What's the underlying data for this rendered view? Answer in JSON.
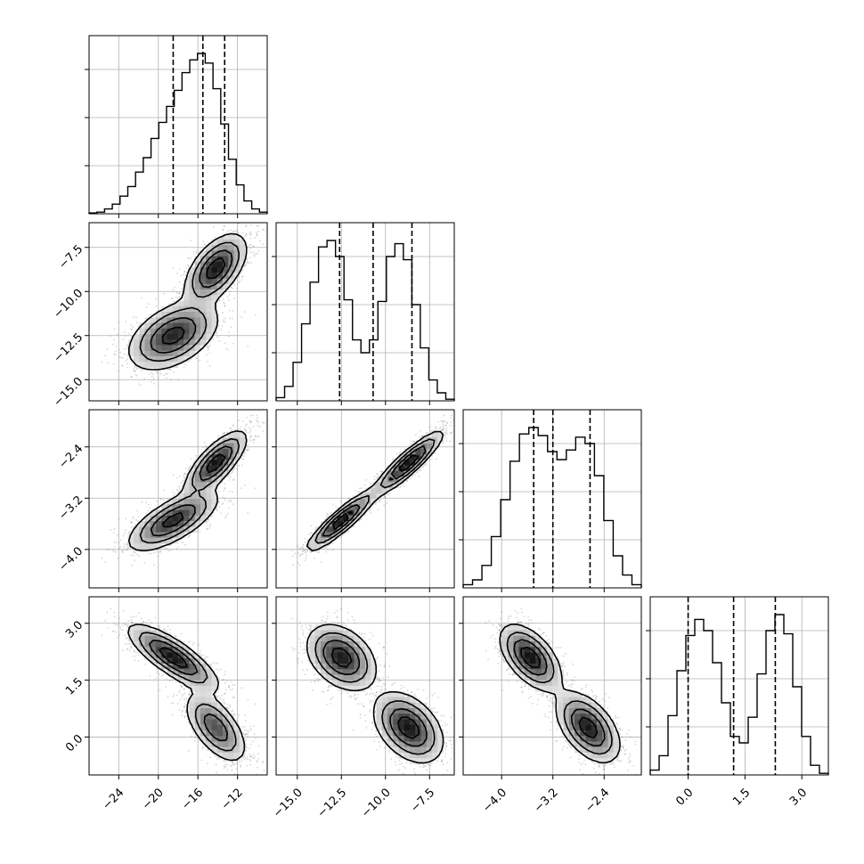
{
  "chart_data": {
    "type": "corner",
    "grid": true,
    "variables": [
      {
        "range": [
          -27,
          -9
        ],
        "ticks": [
          -24,
          -20,
          -16,
          -12
        ],
        "tick_labels": [
          "−24",
          "−20",
          "−16",
          "−12"
        ],
        "quantiles": [
          -18.5,
          -15.5,
          -13.3
        ]
      },
      {
        "range": [
          -16.2,
          -6.1
        ],
        "ticks": [
          -15.0,
          -12.5,
          -10.0,
          -7.5
        ],
        "tick_labels": [
          "−15.0",
          "−12.5",
          "−10.0",
          "−7.5"
        ],
        "quantiles": [
          -12.6,
          -10.7,
          -8.5
        ]
      },
      {
        "range": [
          -4.6,
          -1.82
        ],
        "ticks": [
          -4.0,
          -3.2,
          -2.4
        ],
        "tick_labels": [
          "−4.0",
          "−3.2",
          "−2.4"
        ],
        "quantiles": [
          -3.5,
          -3.2,
          -2.62
        ]
      },
      {
        "range": [
          -1.0,
          3.7
        ],
        "ticks": [
          0.0,
          1.5,
          3.0
        ],
        "tick_labels": [
          "0.0",
          "1.5",
          "3.0"
        ],
        "quantiles": [
          0.0,
          1.2,
          2.3
        ]
      }
    ],
    "histograms": [
      [
        0.005,
        0.01,
        0.03,
        0.06,
        0.11,
        0.17,
        0.26,
        0.35,
        0.47,
        0.57,
        0.67,
        0.77,
        0.88,
        0.96,
        1.0,
        0.94,
        0.78,
        0.56,
        0.34,
        0.18,
        0.08,
        0.03,
        0.01
      ],
      [
        0.02,
        0.09,
        0.24,
        0.48,
        0.74,
        0.96,
        1.0,
        0.9,
        0.63,
        0.38,
        0.3,
        0.38,
        0.62,
        0.9,
        0.98,
        0.88,
        0.6,
        0.33,
        0.13,
        0.05,
        0.01
      ],
      [
        0.02,
        0.05,
        0.14,
        0.32,
        0.55,
        0.79,
        0.96,
        1.0,
        0.95,
        0.85,
        0.8,
        0.86,
        0.94,
        0.9,
        0.7,
        0.42,
        0.2,
        0.08,
        0.02
      ],
      [
        0.03,
        0.12,
        0.37,
        0.65,
        0.87,
        0.97,
        0.9,
        0.7,
        0.45,
        0.24,
        0.2,
        0.36,
        0.63,
        0.9,
        1.0,
        0.88,
        0.55,
        0.24,
        0.06,
        0.01
      ]
    ],
    "modes": [
      {
        "weight": 0.5,
        "mean": [
          -18.5,
          -12.5,
          -3.55,
          2.1
        ],
        "sd": [
          2.2,
          0.95,
          0.23,
          0.42
        ],
        "corr": [
          [
            1,
            0.45,
            0.7,
            -0.8
          ],
          [
            0.45,
            1,
            0.9,
            -0.35
          ],
          [
            0.7,
            0.9,
            1,
            -0.55
          ],
          [
            -0.8,
            -0.35,
            -0.55,
            1
          ]
        ]
      },
      {
        "weight": 0.5,
        "mean": [
          -14.2,
          -8.7,
          -2.65,
          0.25
        ],
        "sd": [
          1.5,
          0.95,
          0.24,
          0.45
        ],
        "corr": [
          [
            1,
            0.55,
            0.75,
            -0.6
          ],
          [
            0.55,
            1,
            0.9,
            -0.4
          ],
          [
            0.75,
            0.9,
            1,
            -0.5
          ],
          [
            -0.6,
            -0.4,
            -0.5,
            1
          ]
        ]
      }
    ]
  }
}
